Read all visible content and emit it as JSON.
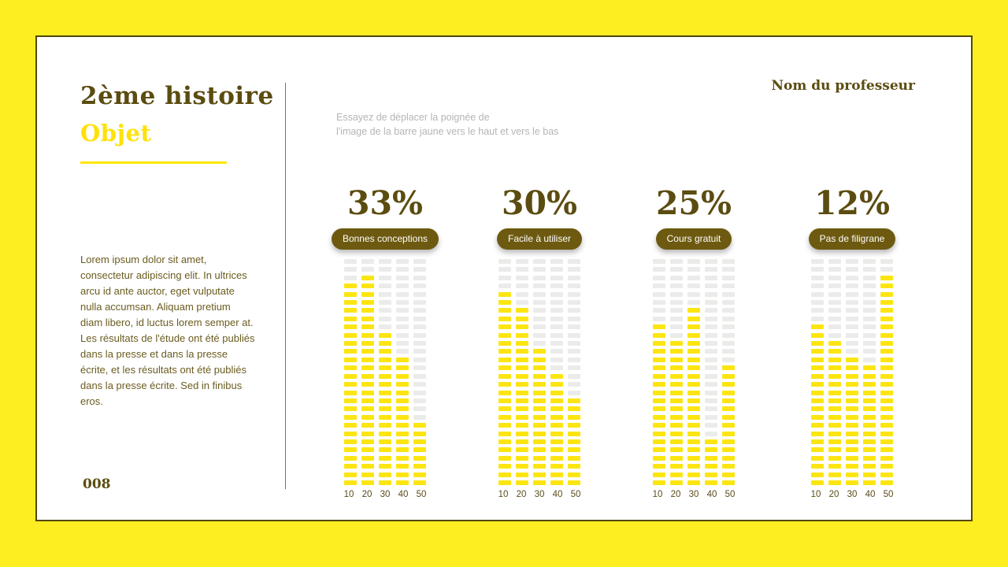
{
  "header": {
    "professor": "Nom du professeur",
    "hint_line1": "Essayez de déplacer la poignée de",
    "hint_line2": "l'image de la barre jaune vers le haut et vers le bas"
  },
  "left": {
    "title": "2ème histoire",
    "subtitle": "Objet",
    "body": "Lorem ipsum dolor sit amet, consectetur adipiscing elit. In ultrices arcu id ante auctor, eget vulputate nulla accumsan. Aliquam pretium diam libero, id luctus lorem semper at. Les résultats de l'étude ont été publiés dans la presse et dans la presse écrite, et les résultats ont été publiés dans la presse écrite. Sed in finibus eros.",
    "page_number": "008"
  },
  "colors": {
    "frame_yellow": "#fcee21",
    "card_border": "#53470d",
    "dark_olive": "#5b4c10",
    "accent_yellow": "#ffe600",
    "badge_olive": "#6d5a10",
    "dash_gray": "#ebebe9",
    "dash_yellow": "#fce511",
    "hint_gray": "#b5b5b5"
  },
  "chart_data": [
    {
      "type": "bar",
      "title": "33%",
      "label": "Bonnes conceptions",
      "categories": [
        "10",
        "20",
        "30",
        "40",
        "50"
      ],
      "values": [
        25,
        26,
        19,
        16,
        8
      ],
      "total_segments": 28,
      "ylim": [
        0,
        28
      ],
      "note": "values = yellow filled dash segments from bottom, out of total_segments"
    },
    {
      "type": "bar",
      "title": "30%",
      "label": "Facile à utiliser",
      "categories": [
        "10",
        "20",
        "30",
        "40",
        "50"
      ],
      "values": [
        24,
        22,
        17,
        14,
        11
      ],
      "total_segments": 28,
      "ylim": [
        0,
        28
      ],
      "note": "values = yellow filled dash segments from bottom, out of total_segments"
    },
    {
      "type": "bar",
      "title": "25%",
      "label": "Cours gratuit",
      "categories": [
        "10",
        "20",
        "30",
        "40",
        "50"
      ],
      "values": [
        20,
        18,
        22,
        6,
        15
      ],
      "total_segments": 28,
      "ylim": [
        0,
        28
      ],
      "note": "values = yellow filled dash segments from bottom, out of total_segments"
    },
    {
      "type": "bar",
      "title": "12%",
      "label": "Pas de filigrane",
      "categories": [
        "10",
        "20",
        "30",
        "40",
        "50"
      ],
      "values": [
        20,
        18,
        16,
        15,
        26
      ],
      "total_segments": 28,
      "ylim": [
        0,
        28
      ],
      "note": "values = yellow filled dash segments from bottom, out of total_segments"
    }
  ]
}
